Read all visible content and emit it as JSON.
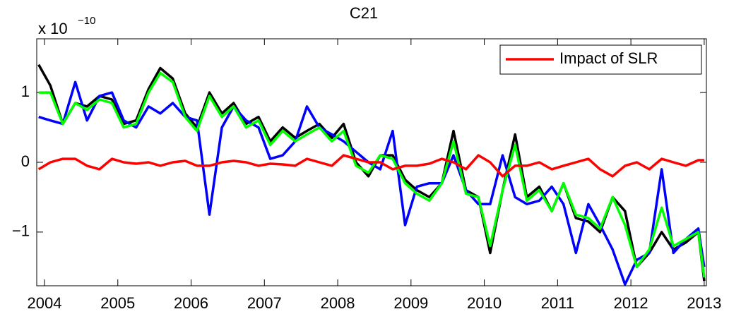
{
  "chart_data": {
    "type": "line",
    "title": "C21",
    "y_multiplier": "x 10",
    "y_exponent": "−10",
    "x": [
      2003.92,
      2004.08,
      2004.25,
      2004.42,
      2004.58,
      2004.75,
      2004.92,
      2005.08,
      2005.25,
      2005.42,
      2005.58,
      2005.75,
      2005.92,
      2006.08,
      2006.25,
      2006.42,
      2006.58,
      2006.75,
      2006.92,
      2007.08,
      2007.25,
      2007.42,
      2007.58,
      2007.75,
      2007.92,
      2008.08,
      2008.25,
      2008.42,
      2008.58,
      2008.75,
      2008.92,
      2009.08,
      2009.25,
      2009.42,
      2009.58,
      2009.75,
      2009.92,
      2010.08,
      2010.25,
      2010.42,
      2010.58,
      2010.75,
      2010.92,
      2011.08,
      2011.25,
      2011.42,
      2011.58,
      2011.75,
      2011.92,
      2012.08,
      2012.25,
      2012.42,
      2012.58,
      2012.75,
      2012.92,
      2013.0
    ],
    "series": [
      {
        "color": "#000000",
        "values": [
          1.4,
          1.1,
          0.55,
          0.85,
          0.8,
          0.95,
          0.9,
          0.55,
          0.6,
          1.05,
          1.35,
          1.2,
          0.7,
          0.5,
          1.0,
          0.7,
          0.85,
          0.55,
          0.65,
          0.3,
          0.5,
          0.35,
          0.45,
          0.55,
          0.35,
          0.55,
          0.0,
          -0.2,
          0.1,
          0.1,
          -0.25,
          -0.4,
          -0.5,
          -0.3,
          0.45,
          -0.4,
          -0.5,
          -1.3,
          -0.4,
          0.4,
          -0.5,
          -0.35,
          -0.7,
          -0.3,
          -0.8,
          -0.85,
          -1.0,
          -0.5,
          -0.7,
          -1.5,
          -1.3,
          -1.0,
          -1.25,
          -1.15,
          -1.0,
          -1.7
        ]
      },
      {
        "color": "#0000ff",
        "values": [
          0.65,
          0.6,
          0.55,
          1.15,
          0.6,
          0.95,
          1.0,
          0.6,
          0.5,
          0.8,
          0.7,
          0.85,
          0.65,
          0.6,
          -0.75,
          0.5,
          0.8,
          0.6,
          0.5,
          0.05,
          0.1,
          0.3,
          0.8,
          0.5,
          0.4,
          0.3,
          0.15,
          0.0,
          -0.1,
          0.45,
          -0.9,
          -0.35,
          -0.3,
          -0.3,
          0.1,
          -0.4,
          -0.6,
          -0.6,
          0.1,
          -0.5,
          -0.6,
          -0.55,
          -0.35,
          -0.6,
          -1.3,
          -0.6,
          -0.9,
          -1.25,
          -1.75,
          -1.4,
          -1.3,
          -0.1,
          -1.3,
          -1.1,
          -0.95,
          -1.5
        ]
      },
      {
        "color": "#00ff00",
        "values": [
          1.0,
          1.0,
          0.55,
          0.85,
          0.75,
          0.9,
          0.85,
          0.5,
          0.55,
          1.0,
          1.28,
          1.15,
          0.65,
          0.45,
          0.95,
          0.65,
          0.8,
          0.5,
          0.6,
          0.25,
          0.45,
          0.3,
          0.4,
          0.5,
          0.3,
          0.45,
          -0.05,
          -0.15,
          0.1,
          0.05,
          -0.3,
          -0.45,
          -0.55,
          -0.3,
          0.3,
          -0.45,
          -0.5,
          -1.2,
          -0.4,
          0.25,
          -0.55,
          -0.4,
          -0.7,
          -0.3,
          -0.75,
          -0.8,
          -0.95,
          -0.5,
          -0.9,
          -1.5,
          -1.25,
          -0.65,
          -1.2,
          -1.1,
          -1.0,
          -1.65
        ]
      },
      {
        "name": "Impact of SLR",
        "color": "#ff0000",
        "values": [
          -0.1,
          0.0,
          0.05,
          0.05,
          -0.05,
          -0.1,
          0.05,
          0.0,
          -0.02,
          0.0,
          -0.05,
          0.0,
          0.02,
          -0.05,
          -0.05,
          0.0,
          0.02,
          0.0,
          -0.05,
          -0.02,
          -0.03,
          -0.05,
          0.05,
          0.0,
          -0.05,
          0.1,
          0.05,
          0.0,
          0.0,
          -0.1,
          -0.05,
          -0.05,
          -0.02,
          0.05,
          0.0,
          -0.1,
          0.1,
          0.0,
          -0.2,
          -0.05,
          -0.05,
          0.0,
          -0.1,
          -0.05,
          0.0,
          0.05,
          -0.1,
          -0.2,
          -0.05,
          0.0,
          -0.1,
          0.05,
          0.0,
          -0.05,
          0.03,
          0.03
        ]
      }
    ],
    "xlim": [
      2003.894,
      2013.03
    ],
    "xticks": [
      2004,
      2005,
      2006,
      2007,
      2008,
      2009,
      2010,
      2011,
      2012,
      2013
    ],
    "ylim": [
      -1.77,
      1.77
    ],
    "yticks": [
      {
        "value": -1,
        "label": "−1"
      },
      0,
      1
    ],
    "legend": "northeast",
    "grid": false
  }
}
